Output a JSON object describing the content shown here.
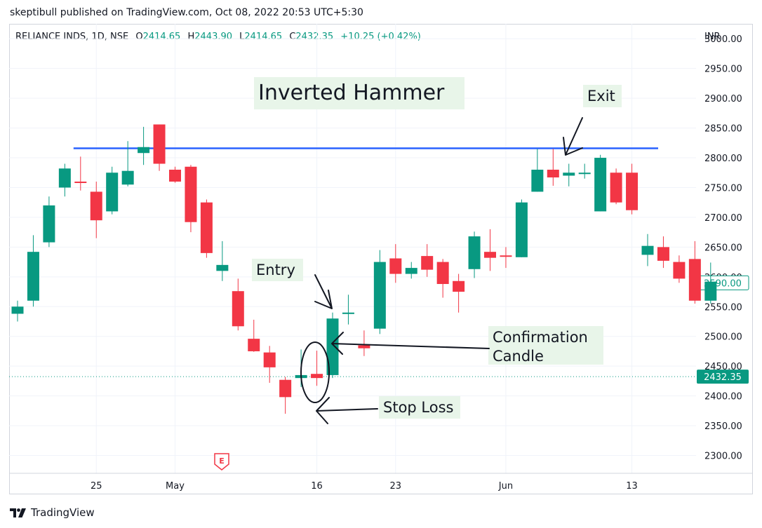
{
  "publisher_line": "skeptibull published on TradingView.com, Oct 08, 2022 20:53 UTC+5:30",
  "brand": "TradingView",
  "legend": {
    "symbol": "RELIANCE INDS, 1D, NSE",
    "open_label": "O",
    "open": "2414.65",
    "high_label": "H",
    "high": "2443.90",
    "low_label": "L",
    "low": "2414.65",
    "close_label": "C",
    "close": "2432.35",
    "change": "+10.25 (+0.42%)"
  },
  "colors": {
    "up": "#089981",
    "down": "#f23645",
    "level_line": "#2962ff",
    "annotation_bg": "#e8f5e9"
  },
  "chart_data": {
    "type": "candlestick",
    "currency": "INR",
    "ylim": [
      2270,
      3025
    ],
    "y_ticks": [
      2300,
      2350,
      2400,
      2450,
      2500,
      2550,
      2600,
      2650,
      2700,
      2750,
      2800,
      2850,
      2900,
      2950,
      3000
    ],
    "x_ticks": [
      {
        "label": "25",
        "index": 5
      },
      {
        "label": "May",
        "index": 10
      },
      {
        "label": "16",
        "index": 19
      },
      {
        "label": "23",
        "index": 24
      },
      {
        "label": "Jun",
        "index": 31
      },
      {
        "label": "13",
        "index": 39
      }
    ],
    "candles": [
      {
        "o": 2538,
        "h": 2560,
        "l": 2525,
        "c": 2550
      },
      {
        "o": 2560,
        "h": 2670,
        "l": 2550,
        "c": 2642
      },
      {
        "o": 2658,
        "h": 2735,
        "l": 2650,
        "c": 2720
      },
      {
        "o": 2750,
        "h": 2790,
        "l": 2735,
        "c": 2782
      },
      {
        "o": 2760,
        "h": 2802,
        "l": 2745,
        "c": 2758
      },
      {
        "o": 2743,
        "h": 2760,
        "l": 2665,
        "c": 2695
      },
      {
        "o": 2710,
        "h": 2785,
        "l": 2705,
        "c": 2775
      },
      {
        "o": 2755,
        "h": 2828,
        "l": 2752,
        "c": 2778
      },
      {
        "o": 2808,
        "h": 2852,
        "l": 2788,
        "c": 2818
      },
      {
        "o": 2856,
        "h": 2856,
        "l": 2778,
        "c": 2790
      },
      {
        "o": 2780,
        "h": 2785,
        "l": 2758,
        "c": 2760
      },
      {
        "o": 2785,
        "h": 2788,
        "l": 2675,
        "c": 2692
      },
      {
        "o": 2725,
        "h": 2730,
        "l": 2632,
        "c": 2640
      },
      {
        "o": 2610,
        "h": 2660,
        "l": 2593,
        "c": 2620
      },
      {
        "o": 2576,
        "h": 2597,
        "l": 2510,
        "c": 2517
      },
      {
        "o": 2496,
        "h": 2528,
        "l": 2474,
        "c": 2475
      },
      {
        "o": 2473,
        "h": 2484,
        "l": 2422,
        "c": 2448
      },
      {
        "o": 2427,
        "h": 2432,
        "l": 2370,
        "c": 2398
      },
      {
        "o": 2430,
        "h": 2478,
        "l": 2415,
        "c": 2435
      },
      {
        "o": 2437,
        "h": 2476,
        "l": 2417,
        "c": 2430
      },
      {
        "o": 2435,
        "h": 2540,
        "l": 2430,
        "c": 2530
      },
      {
        "o": 2540,
        "h": 2570,
        "l": 2520,
        "c": 2540
      },
      {
        "o": 2485,
        "h": 2510,
        "l": 2467,
        "c": 2480
      },
      {
        "o": 2513,
        "h": 2645,
        "l": 2504,
        "c": 2625
      },
      {
        "o": 2631,
        "h": 2655,
        "l": 2590,
        "c": 2605
      },
      {
        "o": 2605,
        "h": 2625,
        "l": 2597,
        "c": 2615
      },
      {
        "o": 2635,
        "h": 2655,
        "l": 2600,
        "c": 2612
      },
      {
        "o": 2625,
        "h": 2630,
        "l": 2565,
        "c": 2588
      },
      {
        "o": 2593,
        "h": 2605,
        "l": 2540,
        "c": 2575
      },
      {
        "o": 2613,
        "h": 2676,
        "l": 2598,
        "c": 2668
      },
      {
        "o": 2642,
        "h": 2680,
        "l": 2610,
        "c": 2632
      },
      {
        "o": 2636,
        "h": 2650,
        "l": 2615,
        "c": 2635
      },
      {
        "o": 2633,
        "h": 2730,
        "l": 2633,
        "c": 2725
      },
      {
        "o": 2743,
        "h": 2815,
        "l": 2743,
        "c": 2780
      },
      {
        "o": 2780,
        "h": 2815,
        "l": 2753,
        "c": 2767
      },
      {
        "o": 2770,
        "h": 2790,
        "l": 2752,
        "c": 2775
      },
      {
        "o": 2773,
        "h": 2790,
        "l": 2765,
        "c": 2775
      },
      {
        "o": 2710,
        "h": 2805,
        "l": 2710,
        "c": 2800
      },
      {
        "o": 2775,
        "h": 2782,
        "l": 2722,
        "c": 2725
      },
      {
        "o": 2775,
        "h": 2790,
        "l": 2705,
        "c": 2712
      },
      {
        "o": 2637,
        "h": 2672,
        "l": 2618,
        "c": 2652
      },
      {
        "o": 2650,
        "h": 2668,
        "l": 2615,
        "c": 2627
      },
      {
        "o": 2625,
        "h": 2636,
        "l": 2590,
        "c": 2597
      },
      {
        "o": 2630,
        "h": 2660,
        "l": 2555,
        "c": 2560
      },
      {
        "o": 2560,
        "h": 2624,
        "l": 2555,
        "c": 2592
      }
    ],
    "level_line": {
      "price": 2816,
      "from_index": 4,
      "to_index": 40
    },
    "last_price": "2432.35",
    "marker_price": "2590.00",
    "event_label": "E",
    "annotations": {
      "title": "Inverted Hammer",
      "exit": "Exit",
      "entry": "Entry",
      "confirmation_1": "Confirmation",
      "confirmation_2": "Candle",
      "stop_loss": "Stop Loss"
    }
  }
}
